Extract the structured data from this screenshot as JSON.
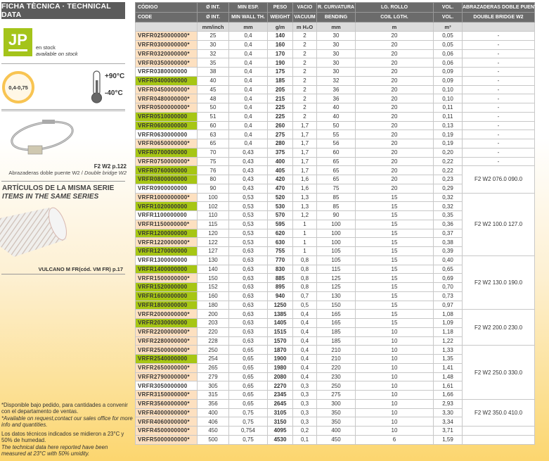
{
  "left": {
    "header": "FICHA TÈCNICA · TECHNICAL DATA",
    "logo_text": "JP",
    "stock_es": "en stock",
    "stock_en": "available on stock",
    "thickness": "0,4-0,75",
    "temp_max": "+90°C",
    "temp_min": "-40°C",
    "clamp_ref": "F2 W2 p.122",
    "clamp_desc_es": "Abrazaderas doble puente W2 / ",
    "clamp_desc_en": "Double bridge W2",
    "series_es": "ARTÍCULOS DE LA MISMA SERIE",
    "series_en": "ITEMS IN THE SAME SERIES",
    "series_item": "VULCANO M FR(cód. VM FR) p.17",
    "note1_es": "*Disponible bajo pedido, para cantidades a convenir con el departamento de ventas.",
    "note1_en": "*Available on request,contact our sales office for more info and quantities.",
    "note2_es": "Los datos técnicos indicados se midieron a 23°C y 50% de humedad.",
    "note2_en": "The technical data here reported have been measured at 23°C with 50% umidity.",
    "colors": {
      "green": "#a7c614",
      "peach": "#fde0c0",
      "header": "#5b5b5b",
      "yellow": "#fcd66f"
    }
  },
  "table": {
    "headers_es": [
      "CÓDIGO",
      "Ø INT.",
      "MIN ESP.",
      "PESO",
      "VACIO",
      "R. CURVATURA",
      "LG. ROLLO",
      "VOL.",
      "ABRAZADERAS DOBLE PUENTE W2"
    ],
    "headers_en": [
      "CODE",
      "Ø INT.",
      "MIN WALL TH.",
      "WEIGHT",
      "VACUUM",
      "BENDING",
      "COIL LGTH.",
      "VOL.",
      "DOUBLE BRIDGE W2"
    ],
    "units": [
      "",
      "mm/inch",
      "mm",
      "g/m",
      "m H₂O",
      "mm",
      "m",
      "m³",
      ""
    ],
    "rows": [
      [
        "VRFR0250000000*",
        "25",
        "0,4",
        "140",
        "2",
        "30",
        "20",
        "0,05",
        "peach"
      ],
      [
        "VRFR0300000000*",
        "30",
        "0,4",
        "160",
        "2",
        "30",
        "20",
        "0,05",
        "peach"
      ],
      [
        "VRFR0320000000*",
        "32",
        "0,4",
        "170",
        "2",
        "30",
        "20",
        "0,06",
        "peach"
      ],
      [
        "VRFR0350000000*",
        "35",
        "0,4",
        "190",
        "2",
        "30",
        "20",
        "0,06",
        "peach"
      ],
      [
        "VRFR0380000000",
        "38",
        "0,4",
        "175",
        "2",
        "30",
        "20",
        "0,09",
        "white"
      ],
      [
        "VRFR0400000000",
        "40",
        "0,4",
        "185",
        "2",
        "32",
        "20",
        "0,09",
        "green"
      ],
      [
        "VRFR0450000000*",
        "45",
        "0,4",
        "205",
        "2",
        "36",
        "20",
        "0,10",
        "peach"
      ],
      [
        "VRFR0480000000*",
        "48",
        "0,4",
        "215",
        "2",
        "36",
        "20",
        "0,10",
        "peach"
      ],
      [
        "VRFR0500000000*",
        "50",
        "0,4",
        "225",
        "2",
        "40",
        "20",
        "0,11",
        "peach"
      ],
      [
        "VRFR0510000000",
        "51",
        "0,4",
        "225",
        "2",
        "40",
        "20",
        "0,11",
        "green"
      ],
      [
        "VRFR0600000000",
        "60",
        "0,4",
        "260",
        "1,7",
        "50",
        "20",
        "0,13",
        "green"
      ],
      [
        "VRFR0630000000",
        "63",
        "0,4",
        "275",
        "1,7",
        "55",
        "20",
        "0,19",
        "white"
      ],
      [
        "VRFR0650000000*",
        "65",
        "0,4",
        "280",
        "1,7",
        "56",
        "20",
        "0,19",
        "peach"
      ],
      [
        "VRFR0700000000",
        "70",
        "0,43",
        "375",
        "1,7",
        "60",
        "20",
        "0,20",
        "green"
      ],
      [
        "VRFR0750000000*",
        "75",
        "0,43",
        "400",
        "1,7",
        "65",
        "20",
        "0,22",
        "peach"
      ],
      [
        "VRFR0760000000",
        "76",
        "0,43",
        "405",
        "1,7",
        "65",
        "20",
        "0,22",
        "green"
      ],
      [
        "VRFR0800000000",
        "80",
        "0,43",
        "420",
        "1,6",
        "65",
        "20",
        "0,23",
        "green"
      ],
      [
        "VRFR0900000000",
        "90",
        "0,43",
        "470",
        "1,6",
        "75",
        "20",
        "0,29",
        "white"
      ],
      [
        "VRFR1000000000*",
        "100",
        "0,53",
        "520",
        "1,3",
        "85",
        "15",
        "0,32",
        "peach"
      ],
      [
        "VRFR1020000000",
        "102",
        "0,53",
        "530",
        "1,3",
        "85",
        "15",
        "0,32",
        "green"
      ],
      [
        "VRFR1100000000",
        "110",
        "0,53",
        "570",
        "1,2",
        "90",
        "15",
        "0,35",
        "white"
      ],
      [
        "VRFR1150000000*",
        "115",
        "0,53",
        "595",
        "1",
        "100",
        "15",
        "0,36",
        "peach"
      ],
      [
        "VRFR1200000000",
        "120",
        "0,53",
        "620",
        "1",
        "100",
        "15",
        "0,37",
        "green"
      ],
      [
        "VRFR1220000000*",
        "122",
        "0,53",
        "630",
        "1",
        "100",
        "15",
        "0,38",
        "peach"
      ],
      [
        "VRFR1270000000",
        "127",
        "0,63",
        "755",
        "1",
        "105",
        "15",
        "0,39",
        "green"
      ],
      [
        "VRFR1300000000",
        "130",
        "0,63",
        "770",
        "0,8",
        "105",
        "15",
        "0,40",
        "white"
      ],
      [
        "VRFR1400000000",
        "140",
        "0,63",
        "830",
        "0,8",
        "115",
        "15",
        "0,65",
        "green"
      ],
      [
        "VRFR1500000000*",
        "150",
        "0,63",
        "885",
        "0,8",
        "125",
        "15",
        "0,69",
        "peach"
      ],
      [
        "VRFR1520000000",
        "152",
        "0,63",
        "895",
        "0,8",
        "125",
        "15",
        "0,70",
        "green"
      ],
      [
        "VRFR1600000000",
        "160",
        "0,63",
        "940",
        "0,7",
        "130",
        "15",
        "0,73",
        "green"
      ],
      [
        "VRFR1800000000",
        "180",
        "0,63",
        "1250",
        "0,5",
        "150",
        "15",
        "0,97",
        "green"
      ],
      [
        "VRFR2000000000*",
        "200",
        "0,63",
        "1385",
        "0,4",
        "165",
        "15",
        "1,08",
        "peach"
      ],
      [
        "VRFR2030000000",
        "203",
        "0,63",
        "1405",
        "0,4",
        "165",
        "15",
        "1,09",
        "green"
      ],
      [
        "VRFR2200000000*",
        "220",
        "0,63",
        "1515",
        "0,4",
        "185",
        "10",
        "1,18",
        "peach"
      ],
      [
        "VRFR2280000000*",
        "228",
        "0,63",
        "1570",
        "0,4",
        "185",
        "10",
        "1,22",
        "peach"
      ],
      [
        "VRFR2500000000*",
        "250",
        "0,65",
        "1870",
        "0,4",
        "210",
        "10",
        "1,33",
        "peach"
      ],
      [
        "VRFR2540000000",
        "254",
        "0,65",
        "1900",
        "0,4",
        "210",
        "10",
        "1,35",
        "green"
      ],
      [
        "VRFR2650000000*",
        "265",
        "0,65",
        "1980",
        "0,4",
        "220",
        "10",
        "1,41",
        "peach"
      ],
      [
        "VRFR2790000000*",
        "279",
        "0,65",
        "2080",
        "0,4",
        "230",
        "10",
        "1,48",
        "peach"
      ],
      [
        "VRFR3050000000",
        "305",
        "0,65",
        "2270",
        "0,3",
        "250",
        "10",
        "1,61",
        "white"
      ],
      [
        "VRFR3150000000*",
        "315",
        "0,65",
        "2345",
        "0,3",
        "275",
        "10",
        "1,66",
        "peach"
      ],
      [
        "VRFR3560000000*",
        "356",
        "0,65",
        "2645",
        "0,3",
        "300",
        "10",
        "2,93",
        "peach"
      ],
      [
        "VRFR4000000000*",
        "400",
        "0,75",
        "3105",
        "0,3",
        "350",
        "10",
        "3,30",
        "peach"
      ],
      [
        "VRFR4060000000*",
        "406",
        "0,75",
        "3150",
        "0,3",
        "350",
        "10",
        "3,34",
        "peach"
      ],
      [
        "VRFR4500000000*",
        "450",
        "0,754",
        "4095",
        "0,2",
        "400",
        "10",
        "3,71",
        "peach"
      ],
      [
        "VRFR5000000000*",
        "500",
        "0,75",
        "4530",
        "0,1",
        "450",
        "6",
        "1,59",
        "peach"
      ]
    ],
    "clamps": [
      {
        "text": "-",
        "span": 1
      },
      {
        "text": "-",
        "span": 1
      },
      {
        "text": "-",
        "span": 1
      },
      {
        "text": "-",
        "span": 1
      },
      {
        "text": "-",
        "span": 1
      },
      {
        "text": "-",
        "span": 1
      },
      {
        "text": "-",
        "span": 1
      },
      {
        "text": "-",
        "span": 1
      },
      {
        "text": "-",
        "span": 1
      },
      {
        "text": "-",
        "span": 1
      },
      {
        "text": "-",
        "span": 1
      },
      {
        "text": "-",
        "span": 1
      },
      {
        "text": "-",
        "span": 1
      },
      {
        "text": "-",
        "span": 1
      },
      {
        "text": "-",
        "span": 1
      },
      {
        "text": "F2 W2 076.0 090.0",
        "span": 3
      },
      {
        "text": "F2 W2 100.0 127.0",
        "span": 7
      },
      {
        "text": "F2 W2 130.0 190.0",
        "span": 6
      },
      {
        "text": "F2 W2 200.0 230.0",
        "span": 4
      },
      {
        "text": "F2 W2 250.0 330.0",
        "span": 6
      },
      {
        "text": "F2 W2 350.0 410.0",
        "span": 3
      },
      {
        "text": "",
        "span": 1
      },
      {
        "text": "",
        "span": 1
      }
    ]
  }
}
